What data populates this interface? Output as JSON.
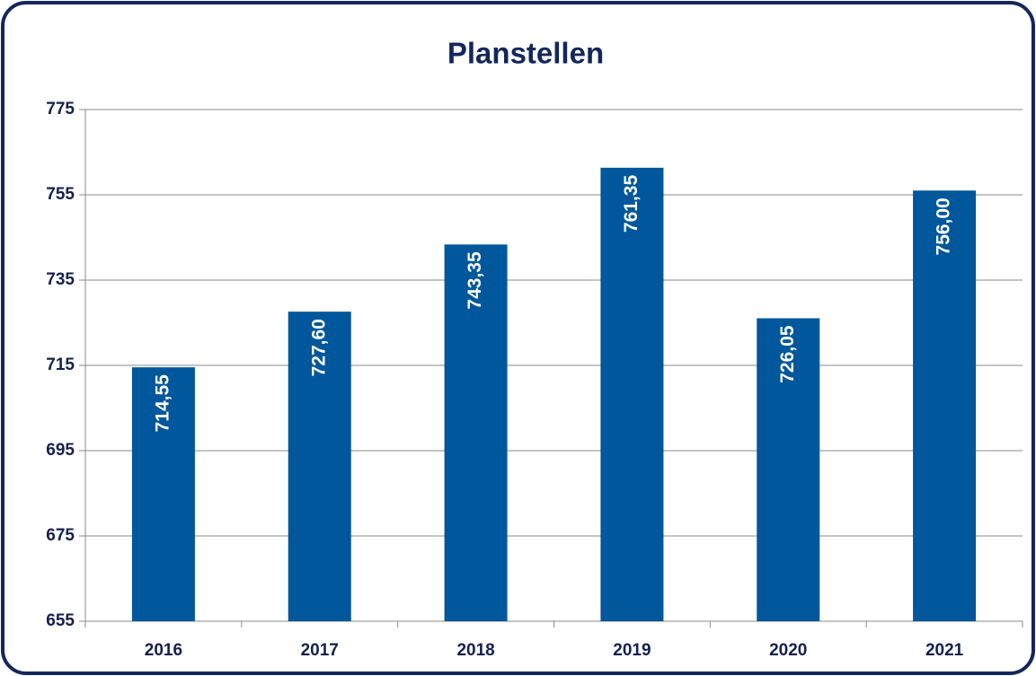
{
  "chart_data": {
    "type": "bar",
    "title": "Planstellen",
    "categories": [
      "2016",
      "2017",
      "2018",
      "2019",
      "2020",
      "2021"
    ],
    "values": [
      714.55,
      727.6,
      743.35,
      761.35,
      726.05,
      756
    ],
    "value_labels": [
      "714,55",
      "727,60",
      "743,35",
      "761,35",
      "726,05",
      "756,00"
    ],
    "color": "#00579b",
    "ylim": [
      655,
      775
    ],
    "yticks": [
      655,
      675,
      695,
      715,
      735,
      755,
      775
    ],
    "grid": true
  }
}
